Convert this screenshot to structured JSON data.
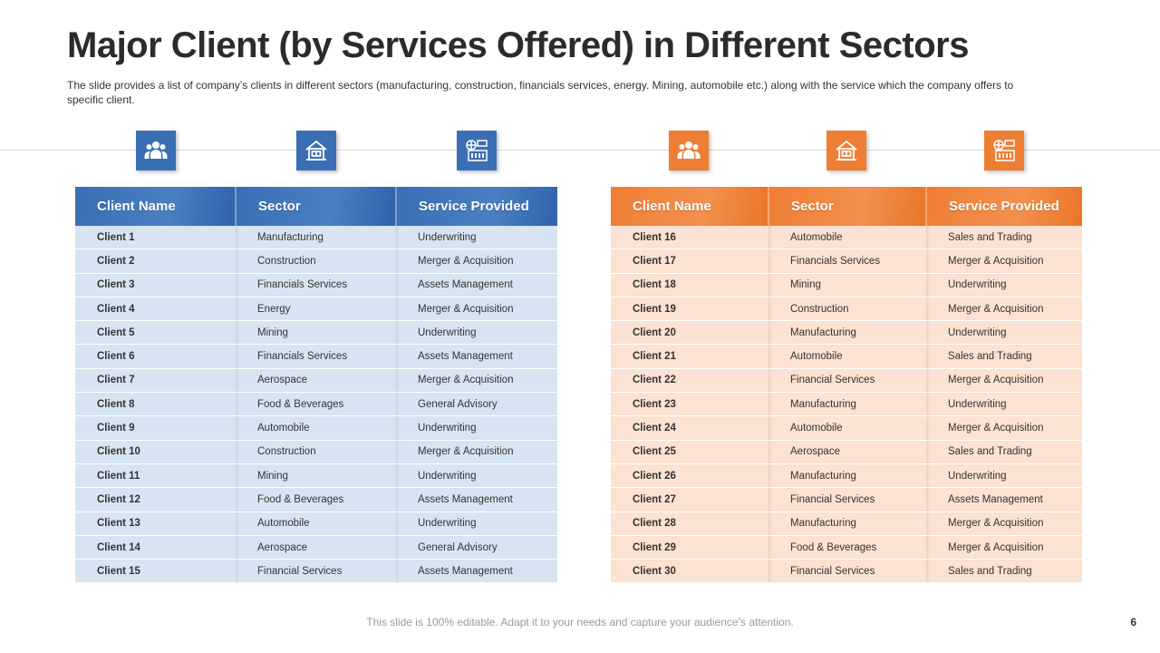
{
  "slide": {
    "title": "Major Client (by Services Offered) in Different Sectors",
    "subtitle": "The slide provides a list of company’s clients in different sectors (manufacturing, construction, financials services, energy.  Mining, automobile etc.) along with the service  which the company offers to specific client.",
    "footer": "This slide is 100% editable. Adapt it to your needs and capture your audience’s attention.",
    "page_number": "6"
  },
  "colors": {
    "blue": "#3a6fb5",
    "orange": "#ef7e35"
  },
  "icons": [
    "people-icon",
    "building-icon",
    "service-icon"
  ],
  "headers": [
    "Client Name",
    "Sector",
    "Service Provided"
  ],
  "left_table": {
    "rows": [
      [
        "Client 1",
        "Manufacturing",
        "Underwriting"
      ],
      [
        "Client 2",
        "Construction",
        "Merger & Acquisition"
      ],
      [
        "Client 3",
        "Financials  Services",
        "Assets Management"
      ],
      [
        "Client 4",
        "Energy",
        "Merger & Acquisition"
      ],
      [
        "Client 5",
        "Mining",
        "Underwriting"
      ],
      [
        "Client 6",
        "Financials  Services",
        "Assets Management"
      ],
      [
        "Client 7",
        "Aerospace",
        "Merger & Acquisition"
      ],
      [
        "Client 8",
        "Food & Beverages",
        "General Advisory"
      ],
      [
        "Client 9",
        "Automobile",
        "Underwriting"
      ],
      [
        "Client 10",
        "Construction",
        "Merger & Acquisition"
      ],
      [
        "Client 11",
        "Mining",
        "Underwriting"
      ],
      [
        "Client 12",
        "Food & Beverages",
        "Assets Management"
      ],
      [
        "Client 13",
        "Automobile",
        "Underwriting"
      ],
      [
        "Client 14",
        "Aerospace",
        "General Advisory"
      ],
      [
        "Client 15",
        "Financial  Services",
        "Assets Management"
      ]
    ]
  },
  "right_table": {
    "rows": [
      [
        "Client 16",
        "Automobile",
        "Sales and Trading"
      ],
      [
        "Client 17",
        "Financials  Services",
        "Merger & Acquisition"
      ],
      [
        "Client 18",
        "Mining",
        "Underwriting"
      ],
      [
        "Client 19",
        "Construction",
        "Merger & Acquisition"
      ],
      [
        "Client 20",
        "Manufacturing",
        "Underwriting"
      ],
      [
        "Client 21",
        "Automobile",
        "Sales and Trading"
      ],
      [
        "Client 22",
        "Financial  Services",
        "Merger & Acquisition"
      ],
      [
        "Client 23",
        "Manufacturing",
        "Underwriting"
      ],
      [
        "Client 24",
        "Automobile",
        "Merger & Acquisition"
      ],
      [
        "Client 25",
        "Aerospace",
        "Sales and Trading"
      ],
      [
        "Client 26",
        "Manufacturing",
        "Underwriting"
      ],
      [
        "Client 27",
        "Financial  Services",
        "Assets Management"
      ],
      [
        "Client 28",
        "Manufacturing",
        "Merger & Acquisition"
      ],
      [
        "Client 29",
        "Food & Beverages",
        "Merger & Acquisition"
      ],
      [
        "Client 30",
        "Financial  Services",
        "Sales and Trading"
      ]
    ]
  }
}
